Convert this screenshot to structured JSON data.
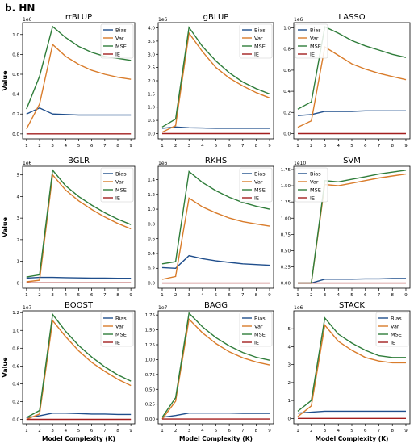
{
  "figure_label": "b. HN",
  "colors": {
    "Bias": "#1f4e8c",
    "Var": "#d97c2b",
    "MSE": "#2f7d3a",
    "IE": "#a31f1f"
  },
  "chart_data": [
    {
      "type": "line",
      "title": "rrBLUP",
      "ylabel": "Value",
      "xlabel": "",
      "scale_label": "1e6",
      "x": [
        1,
        2,
        3,
        4,
        5,
        6,
        7,
        8,
        9
      ],
      "ylim": [
        -0.05,
        1.12
      ],
      "yticks": [
        "0.0",
        "0.2",
        "0.4",
        "0.6",
        "0.8",
        "1.0"
      ],
      "ytick_values": [
        0,
        0.2,
        0.4,
        0.6,
        0.8,
        1.0
      ],
      "legend": [
        "Bias",
        "Var",
        "MSE",
        "IE"
      ],
      "legend_position": "upper-right",
      "series": [
        {
          "name": "Bias",
          "values": [
            0.2,
            0.26,
            0.2,
            0.195,
            0.19,
            0.19,
            0.19,
            0.19,
            0.19
          ]
        },
        {
          "name": "Var",
          "values": [
            0.05,
            0.3,
            0.9,
            0.78,
            0.7,
            0.64,
            0.6,
            0.57,
            0.55
          ]
        },
        {
          "name": "MSE",
          "values": [
            0.25,
            0.58,
            1.08,
            0.97,
            0.88,
            0.82,
            0.78,
            0.76,
            0.74
          ]
        },
        {
          "name": "IE",
          "values": [
            0,
            0,
            0,
            0,
            0,
            0,
            0,
            0,
            0
          ]
        }
      ]
    },
    {
      "type": "line",
      "title": "gBLUP",
      "ylabel": "",
      "xlabel": "",
      "scale_label": "1e6",
      "x": [
        1,
        2,
        3,
        4,
        5,
        6,
        7,
        8,
        9
      ],
      "ylim": [
        -0.2,
        4.2
      ],
      "yticks": [
        "0.0",
        "0.5",
        "1.0",
        "1.5",
        "2.0",
        "2.5",
        "3.0",
        "3.5",
        "4.0"
      ],
      "ytick_values": [
        0,
        0.5,
        1.0,
        1.5,
        2.0,
        2.5,
        3.0,
        3.5,
        4.0
      ],
      "legend": [
        "Bias",
        "Var",
        "MSE",
        "IE"
      ],
      "legend_position": "upper-right",
      "series": [
        {
          "name": "Bias",
          "values": [
            0.2,
            0.25,
            0.22,
            0.21,
            0.2,
            0.2,
            0.2,
            0.2,
            0.2
          ]
        },
        {
          "name": "Var",
          "values": [
            0.05,
            0.3,
            3.8,
            3.1,
            2.5,
            2.1,
            1.8,
            1.55,
            1.35
          ]
        },
        {
          "name": "MSE",
          "values": [
            0.25,
            0.55,
            4.02,
            3.3,
            2.75,
            2.3,
            1.95,
            1.7,
            1.5
          ]
        },
        {
          "name": "IE",
          "values": [
            0,
            0,
            0,
            0,
            0,
            0,
            0,
            0,
            0
          ]
        }
      ]
    },
    {
      "type": "line",
      "title": "LASSO",
      "ylabel": "",
      "xlabel": "",
      "scale_label": "1e6",
      "x": [
        1,
        2,
        3,
        4,
        5,
        6,
        7,
        8,
        9
      ],
      "ylim": [
        -0.05,
        1.05
      ],
      "yticks": [
        "0.0",
        "0.2",
        "0.4",
        "0.6",
        "0.8",
        "1.0"
      ],
      "ytick_values": [
        0,
        0.2,
        0.4,
        0.6,
        0.8,
        1.0
      ],
      "legend": [
        "Bias",
        "Var",
        "MSE",
        "IE"
      ],
      "legend_position": "upper-left",
      "series": [
        {
          "name": "Bias",
          "values": [
            0.17,
            0.18,
            0.21,
            0.21,
            0.21,
            0.215,
            0.215,
            0.215,
            0.215
          ]
        },
        {
          "name": "Var",
          "values": [
            0.06,
            0.12,
            0.82,
            0.74,
            0.66,
            0.61,
            0.57,
            0.54,
            0.51
          ]
        },
        {
          "name": "MSE",
          "values": [
            0.23,
            0.3,
            1.01,
            0.95,
            0.88,
            0.83,
            0.79,
            0.75,
            0.72
          ]
        },
        {
          "name": "IE",
          "values": [
            0,
            0,
            0,
            0,
            0,
            0,
            0,
            0,
            0
          ]
        }
      ]
    },
    {
      "type": "line",
      "title": "BGLR",
      "ylabel": "Value",
      "xlabel": "",
      "scale_label": "1e6",
      "x": [
        1,
        2,
        3,
        4,
        5,
        6,
        7,
        8,
        9
      ],
      "ylim": [
        -0.25,
        5.4
      ],
      "yticks": [
        "0",
        "1",
        "2",
        "3",
        "4",
        "5"
      ],
      "ytick_values": [
        0,
        1,
        2,
        3,
        4,
        5
      ],
      "legend": [
        "Bias",
        "Var",
        "MSE",
        "IE"
      ],
      "legend_position": "upper-right",
      "series": [
        {
          "name": "Bias",
          "values": [
            0.22,
            0.25,
            0.25,
            0.24,
            0.23,
            0.22,
            0.22,
            0.21,
            0.21
          ]
        },
        {
          "name": "Var",
          "values": [
            0.05,
            0.12,
            5.0,
            4.3,
            3.8,
            3.4,
            3.05,
            2.75,
            2.5
          ]
        },
        {
          "name": "MSE",
          "values": [
            0.27,
            0.37,
            5.22,
            4.5,
            4.0,
            3.6,
            3.25,
            2.95,
            2.7
          ]
        },
        {
          "name": "IE",
          "values": [
            0,
            0,
            0,
            0,
            0,
            0,
            0,
            0,
            0
          ]
        }
      ]
    },
    {
      "type": "line",
      "title": "RKHS",
      "ylabel": "",
      "xlabel": "",
      "scale_label": "1e6",
      "x": [
        1,
        2,
        3,
        4,
        5,
        6,
        7,
        8,
        9
      ],
      "ylim": [
        -0.07,
        1.58
      ],
      "yticks": [
        "0.0",
        "0.2",
        "0.4",
        "0.6",
        "0.8",
        "1.0",
        "1.2",
        "1.4"
      ],
      "ytick_values": [
        0,
        0.2,
        0.4,
        0.6,
        0.8,
        1.0,
        1.2,
        1.4
      ],
      "legend": [
        "Bias",
        "Var",
        "MSE",
        "IE"
      ],
      "legend_position": "upper-right",
      "series": [
        {
          "name": "Bias",
          "values": [
            0.21,
            0.2,
            0.37,
            0.33,
            0.3,
            0.28,
            0.26,
            0.25,
            0.24
          ]
        },
        {
          "name": "Var",
          "values": [
            0.05,
            0.09,
            1.15,
            1.03,
            0.95,
            0.88,
            0.83,
            0.8,
            0.77
          ]
        },
        {
          "name": "MSE",
          "values": [
            0.26,
            0.29,
            1.51,
            1.36,
            1.25,
            1.16,
            1.09,
            1.04,
            1.0
          ]
        },
        {
          "name": "IE",
          "values": [
            0,
            0,
            0,
            0,
            0,
            0,
            0,
            0,
            0
          ]
        }
      ]
    },
    {
      "type": "line",
      "title": "SVM",
      "ylabel": "",
      "xlabel": "",
      "scale_label": "1e10",
      "x": [
        1,
        2,
        3,
        4,
        5,
        6,
        7,
        8,
        9
      ],
      "ylim": [
        -0.08,
        1.8
      ],
      "yticks": [
        "0.00",
        "0.25",
        "0.50",
        "0.75",
        "1.00",
        "1.25",
        "1.50",
        "1.75"
      ],
      "ytick_values": [
        0,
        0.25,
        0.5,
        0.75,
        1.0,
        1.25,
        1.5,
        1.75
      ],
      "legend": [
        "Bias",
        "Var",
        "MSE",
        "IE"
      ],
      "legend_position": "upper-left",
      "series": [
        {
          "name": "Bias",
          "values": [
            0.0,
            0.0,
            0.06,
            0.06,
            0.06,
            0.065,
            0.065,
            0.07,
            0.07
          ]
        },
        {
          "name": "Var",
          "values": [
            0.0,
            0.0,
            1.52,
            1.5,
            1.54,
            1.58,
            1.62,
            1.65,
            1.68
          ]
        },
        {
          "name": "MSE",
          "values": [
            0.0,
            0.0,
            1.58,
            1.56,
            1.6,
            1.64,
            1.68,
            1.71,
            1.74
          ]
        },
        {
          "name": "IE",
          "values": [
            0,
            0,
            0,
            0,
            0,
            0,
            0,
            0,
            0
          ]
        }
      ]
    },
    {
      "type": "line",
      "title": "BOOST",
      "ylabel": "Value",
      "xlabel": "Model Complexity (K)",
      "scale_label": "1e7",
      "x": [
        1,
        2,
        3,
        4,
        5,
        6,
        7,
        8,
        9
      ],
      "ylim": [
        -0.05,
        1.22
      ],
      "yticks": [
        "0.0",
        "0.2",
        "0.4",
        "0.6",
        "0.8",
        "1.0",
        "1.2"
      ],
      "ytick_values": [
        0,
        0.2,
        0.4,
        0.6,
        0.8,
        1.0,
        1.2
      ],
      "legend": [
        "Bias",
        "Var",
        "MSE",
        "IE"
      ],
      "legend_position": "upper-right",
      "series": [
        {
          "name": "Bias",
          "values": [
            0.02,
            0.04,
            0.07,
            0.07,
            0.065,
            0.06,
            0.06,
            0.055,
            0.055
          ]
        },
        {
          "name": "Var",
          "values": [
            0.0,
            0.06,
            1.11,
            0.93,
            0.77,
            0.64,
            0.54,
            0.45,
            0.38
          ]
        },
        {
          "name": "MSE",
          "values": [
            0.02,
            0.1,
            1.18,
            0.99,
            0.83,
            0.7,
            0.59,
            0.5,
            0.43
          ]
        },
        {
          "name": "IE",
          "values": [
            0,
            0,
            0,
            0,
            0,
            0,
            0,
            0,
            0
          ]
        }
      ]
    },
    {
      "type": "line",
      "title": "BAGG",
      "ylabel": "",
      "xlabel": "Model Complexity (K)",
      "scale_label": "1e7",
      "x": [
        1,
        2,
        3,
        4,
        5,
        6,
        7,
        8,
        9
      ],
      "ylim": [
        -0.08,
        1.82
      ],
      "yticks": [
        "0.00",
        "0.25",
        "0.50",
        "0.75",
        "1.00",
        "1.25",
        "1.50",
        "1.75"
      ],
      "ytick_values": [
        0,
        0.25,
        0.5,
        0.75,
        1.0,
        1.25,
        1.5,
        1.75
      ],
      "legend": [
        "Bias",
        "Var",
        "MSE",
        "IE"
      ],
      "legend_position": "upper-right",
      "series": [
        {
          "name": "Bias",
          "values": [
            0.03,
            0.06,
            0.1,
            0.1,
            0.1,
            0.1,
            0.095,
            0.095,
            0.095
          ]
        },
        {
          "name": "Var",
          "values": [
            0.0,
            0.3,
            1.68,
            1.45,
            1.27,
            1.13,
            1.03,
            0.96,
            0.91
          ]
        },
        {
          "name": "MSE",
          "values": [
            0.03,
            0.36,
            1.78,
            1.55,
            1.37,
            1.23,
            1.12,
            1.04,
            0.99
          ]
        },
        {
          "name": "IE",
          "values": [
            0,
            0,
            0,
            0,
            0,
            0,
            0,
            0,
            0
          ]
        }
      ]
    },
    {
      "type": "line",
      "title": "STACK",
      "ylabel": "",
      "xlabel": "Model Complexity (K)",
      "scale_label": "1e6",
      "x": [
        1,
        2,
        3,
        4,
        5,
        6,
        7,
        8,
        9
      ],
      "ylim": [
        -0.3,
        6.0
      ],
      "yticks": [
        "0",
        "1",
        "2",
        "3",
        "4",
        "5"
      ],
      "ytick_values": [
        0,
        1,
        2,
        3,
        4,
        5
      ],
      "legend": [
        "Bias",
        "Var",
        "MSE",
        "IE"
      ],
      "legend_position": "upper-right",
      "series": [
        {
          "name": "Bias",
          "values": [
            0.3,
            0.35,
            0.4,
            0.4,
            0.4,
            0.4,
            0.4,
            0.4,
            0.4
          ]
        },
        {
          "name": "Var",
          "values": [
            0.1,
            0.7,
            5.2,
            4.3,
            3.8,
            3.4,
            3.2,
            3.1,
            3.1
          ]
        },
        {
          "name": "MSE",
          "values": [
            0.4,
            1.0,
            5.6,
            4.7,
            4.2,
            3.8,
            3.5,
            3.4,
            3.4
          ]
        },
        {
          "name": "IE",
          "values": [
            0,
            0,
            0,
            0,
            0,
            0,
            0,
            0,
            0
          ]
        }
      ]
    }
  ]
}
